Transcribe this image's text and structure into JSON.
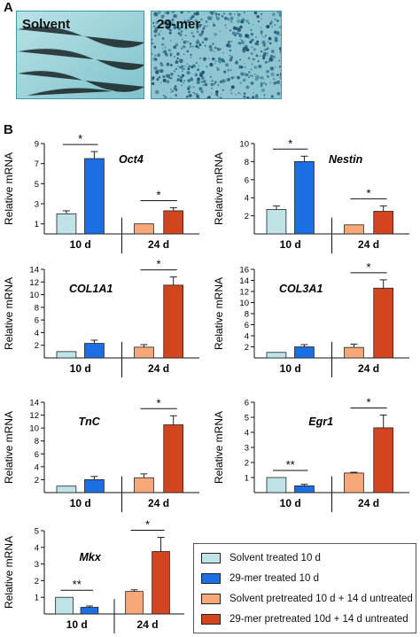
{
  "panel_a": {
    "letter": "A",
    "images": [
      {
        "label": "Solvent",
        "background": "#9fd3da"
      },
      {
        "label": "29-mer",
        "background": "#7db9c7"
      }
    ]
  },
  "panel_b": {
    "letter": "B"
  },
  "colors": {
    "solvent_10d": "#bfe3e6",
    "mer29_10d": "#1c6fe3",
    "solvent_24d": "#f6a878",
    "mer29_24d": "#d2451e"
  },
  "legend": {
    "items": [
      {
        "label": "Solvent treated 10 d",
        "color": "#bfe3e6"
      },
      {
        "label": "29-mer treated 10 d",
        "color": "#1c6fe3"
      },
      {
        "label": "Solvent pretreated 10 d + 14 d untreated",
        "color": "#f6a878"
      },
      {
        "label": "29-mer pretreated 10d + 14 d untreated",
        "color": "#d2451e"
      }
    ]
  },
  "chart_data": [
    {
      "type": "bar",
      "title": "Oct4",
      "ylabel": "Relative mRNA",
      "group_labels": [
        "10 d",
        "24 d"
      ],
      "ylim": [
        0,
        9
      ],
      "yticks": [
        1,
        3,
        5,
        7,
        9
      ],
      "values": [
        2.0,
        7.5,
        1.0,
        2.3
      ],
      "errors": [
        0.3,
        0.7,
        0,
        0.3
      ],
      "significance": [
        {
          "group": 0,
          "mark": "*"
        },
        {
          "group": 1,
          "mark": "*"
        }
      ]
    },
    {
      "type": "bar",
      "title": "Nestin",
      "ylabel": "Relative mRNA",
      "group_labels": [
        "10 d",
        "24 d"
      ],
      "ylim": [
        0,
        10
      ],
      "yticks": [
        2,
        4,
        6,
        8,
        10
      ],
      "values": [
        2.7,
        8.0,
        1.0,
        2.5
      ],
      "errors": [
        0.4,
        0.6,
        0,
        0.6
      ],
      "significance": [
        {
          "group": 0,
          "mark": "*"
        },
        {
          "group": 1,
          "mark": "*"
        }
      ]
    },
    {
      "type": "bar",
      "title": "COL1A1",
      "ylabel": "Relative mRNA",
      "group_labels": [
        "10 d",
        "24 d"
      ],
      "ylim": [
        0,
        14
      ],
      "yticks": [
        2,
        4,
        6,
        8,
        10,
        12,
        14
      ],
      "values": [
        1.0,
        2.3,
        1.7,
        11.5
      ],
      "errors": [
        0,
        0.5,
        0.4,
        1.3
      ],
      "significance": [
        {
          "group": 1,
          "mark": "*"
        }
      ]
    },
    {
      "type": "bar",
      "title": "COL3A1",
      "ylabel": "Relative mRNA",
      "group_labels": [
        "10 d",
        "24 d"
      ],
      "ylim": [
        0,
        16
      ],
      "yticks": [
        2,
        4,
        6,
        8,
        10,
        12,
        14,
        16
      ],
      "values": [
        1.0,
        2.0,
        1.9,
        12.6
      ],
      "errors": [
        0,
        0.4,
        0.6,
        1.5
      ],
      "significance": [
        {
          "group": 1,
          "mark": "*"
        }
      ]
    },
    {
      "type": "bar",
      "title": "TnC",
      "ylabel": "Relative mRNA",
      "group_labels": [
        "10 d",
        "24 d"
      ],
      "ylim": [
        0,
        14
      ],
      "yticks": [
        2,
        4,
        6,
        8,
        10,
        12,
        14
      ],
      "values": [
        1.0,
        2.0,
        2.3,
        10.5
      ],
      "errors": [
        0,
        0.5,
        0.6,
        1.4
      ],
      "significance": [
        {
          "group": 1,
          "mark": "*"
        }
      ]
    },
    {
      "type": "bar",
      "title": "Egr1",
      "ylabel": "Relative mRNA",
      "group_labels": [
        "10 d",
        "24 d"
      ],
      "ylim": [
        0,
        6
      ],
      "yticks": [
        1,
        2,
        3,
        4,
        5,
        6
      ],
      "values": [
        1.0,
        0.45,
        1.3,
        4.3
      ],
      "errors": [
        0,
        0.1,
        0.05,
        0.85
      ],
      "significance": [
        {
          "group": 0,
          "mark": "**"
        },
        {
          "group": 1,
          "mark": "*"
        }
      ]
    },
    {
      "type": "bar",
      "title": "Mkx",
      "ylabel": "Relative mRNA",
      "group_labels": [
        "10 d",
        "24 d"
      ],
      "ylim": [
        0,
        5
      ],
      "yticks": [
        1,
        2,
        3,
        4,
        5
      ],
      "values": [
        1.0,
        0.4,
        1.35,
        3.75
      ],
      "errors": [
        0,
        0.08,
        0.1,
        0.85
      ],
      "significance": [
        {
          "group": 0,
          "mark": "**"
        },
        {
          "group": 1,
          "mark": "*"
        }
      ]
    }
  ]
}
